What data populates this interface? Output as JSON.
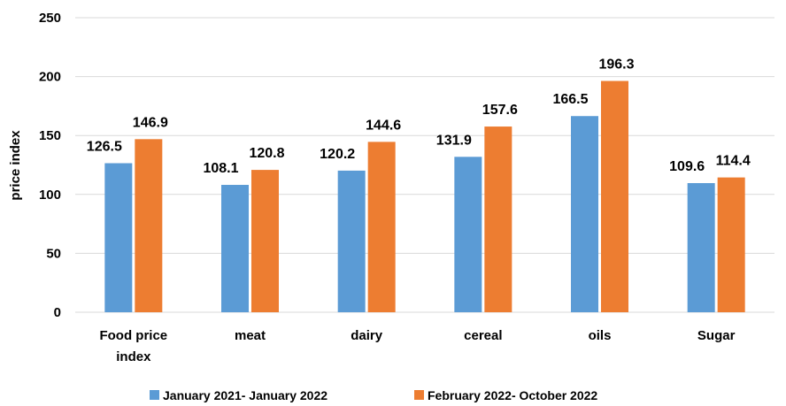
{
  "chart_data": {
    "type": "bar",
    "categories": [
      [
        "Food price",
        "index"
      ],
      [
        "meat"
      ],
      [
        "dairy"
      ],
      [
        "cereal"
      ],
      [
        "oils"
      ],
      [
        "Sugar"
      ]
    ],
    "series": [
      {
        "name": "January 2021- January 2022",
        "color": "#5B9BD5",
        "values": [
          126.5,
          108.1,
          120.2,
          131.9,
          166.5,
          109.6
        ]
      },
      {
        "name": "February 2022- October 2022",
        "color": "#ED7D31",
        "values": [
          146.9,
          120.8,
          144.6,
          157.6,
          196.3,
          114.4
        ]
      }
    ],
    "title": "",
    "xlabel": "",
    "ylabel": "price index",
    "ylim": [
      0,
      250
    ],
    "yticks": [
      0,
      50,
      100,
      150,
      200,
      250
    ],
    "grid": true,
    "legend_position": "bottom"
  }
}
